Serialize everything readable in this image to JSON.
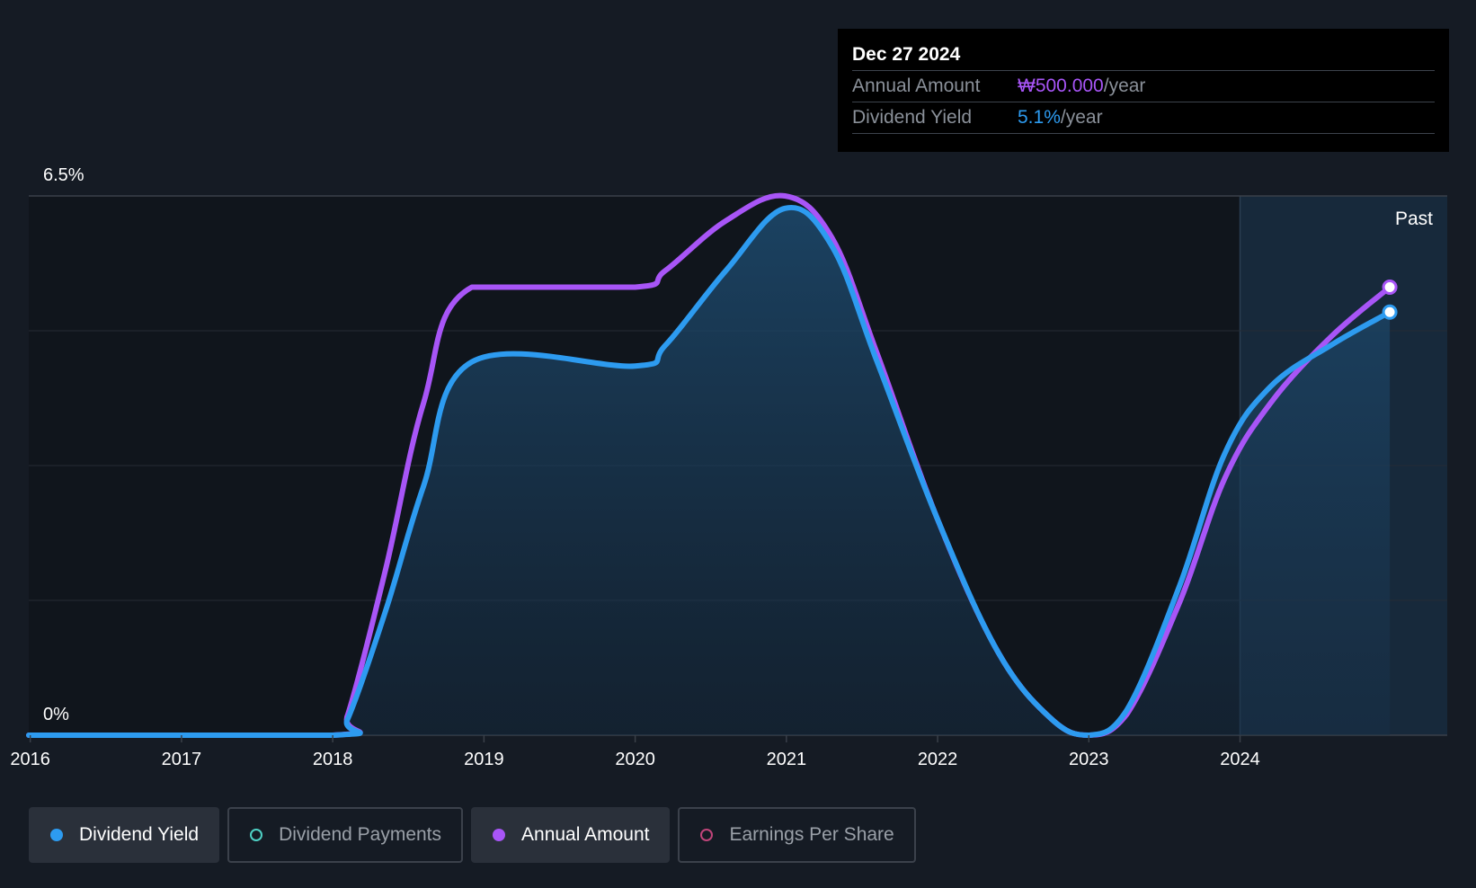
{
  "tooltip": {
    "date": "Dec 27 2024",
    "rows": [
      {
        "key": "Annual Amount",
        "value": "₩500.000",
        "unit": "/year",
        "color": "#a855f7"
      },
      {
        "key": "Dividend Yield",
        "value": "5.1%",
        "unit": "/year",
        "color": "#2d9bf0"
      }
    ]
  },
  "past_label": "Past",
  "legend": [
    {
      "label": "Dividend Yield",
      "color": "#2d9bf0",
      "style": "filled",
      "active": true
    },
    {
      "label": "Dividend Payments",
      "color": "#4fd1c5",
      "style": "hollow",
      "active": false
    },
    {
      "label": "Annual Amount",
      "color": "#a855f7",
      "style": "filled",
      "active": true
    },
    {
      "label": "Earnings Per Share",
      "color": "#c0457a",
      "style": "hollow",
      "active": false
    }
  ],
  "chart_data": {
    "type": "area",
    "title": "",
    "xlabel": "",
    "ylabel": "",
    "x_ticks": [
      "2016",
      "2017",
      "2018",
      "2019",
      "2020",
      "2021",
      "2022",
      "2023",
      "2024"
    ],
    "y_ticks": [
      "0%",
      "6.5%"
    ],
    "ylim": [
      0,
      6.5
    ],
    "xlim": [
      2015.99,
      2025.37
    ],
    "grid": true,
    "past_region_start": 2024.0,
    "series": [
      {
        "name": "Dividend Yield",
        "color": "#2d9bf0",
        "fill": true,
        "points": [
          [
            2015.99,
            0.0
          ],
          [
            2018.0,
            0.0
          ],
          [
            2018.1,
            0.2
          ],
          [
            2018.35,
            1.5
          ],
          [
            2018.6,
            3.0
          ],
          [
            2018.92,
            4.5
          ],
          [
            2020.0,
            4.45
          ],
          [
            2020.2,
            4.7
          ],
          [
            2020.6,
            5.6
          ],
          [
            2020.99,
            6.35
          ],
          [
            2021.3,
            5.9
          ],
          [
            2021.6,
            4.5
          ],
          [
            2022.0,
            2.6
          ],
          [
            2022.4,
            1.0
          ],
          [
            2022.75,
            0.2
          ],
          [
            2023.0,
            0.0
          ],
          [
            2023.25,
            0.3
          ],
          [
            2023.6,
            1.8
          ],
          [
            2023.9,
            3.4
          ],
          [
            2024.2,
            4.2
          ],
          [
            2024.6,
            4.7
          ],
          [
            2024.99,
            5.1
          ]
        ]
      },
      {
        "name": "Annual Amount",
        "color": "#a855f7",
        "fill": false,
        "points": [
          [
            2015.99,
            0.0
          ],
          [
            2018.0,
            0.0
          ],
          [
            2018.1,
            0.25
          ],
          [
            2018.35,
            2.0
          ],
          [
            2018.6,
            4.0
          ],
          [
            2018.92,
            5.4
          ],
          [
            2020.0,
            5.4
          ],
          [
            2020.2,
            5.6
          ],
          [
            2020.6,
            6.2
          ],
          [
            2020.99,
            6.5
          ],
          [
            2021.3,
            6.0
          ],
          [
            2021.6,
            4.6
          ],
          [
            2022.0,
            2.6
          ],
          [
            2022.4,
            1.0
          ],
          [
            2022.75,
            0.2
          ],
          [
            2023.0,
            0.0
          ],
          [
            2023.25,
            0.25
          ],
          [
            2023.6,
            1.6
          ],
          [
            2023.9,
            3.1
          ],
          [
            2024.2,
            4.0
          ],
          [
            2024.6,
            4.8
          ],
          [
            2024.99,
            5.4
          ]
        ]
      }
    ]
  }
}
